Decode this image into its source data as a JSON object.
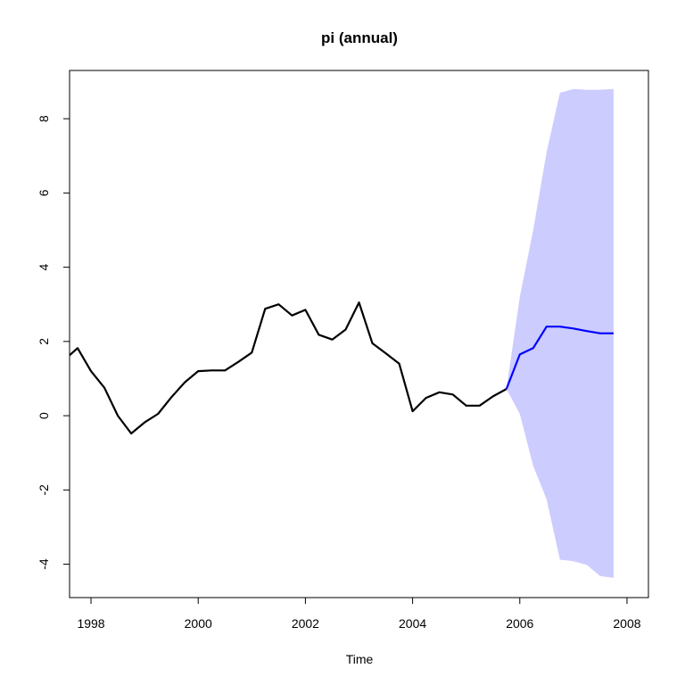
{
  "chart_data": {
    "type": "line",
    "title": "pi (annual)",
    "xlabel": "Time",
    "ylabel": "",
    "xlim": [
      1997.6,
      2008.4
    ],
    "ylim": [
      -4.9,
      9.3
    ],
    "x_ticks": [
      1998,
      2000,
      2002,
      2004,
      2006,
      2008
    ],
    "y_ticks": [
      -4,
      -2,
      0,
      2,
      4,
      6,
      8
    ],
    "grid": false,
    "legend": "none",
    "colors": {
      "history": "#000000",
      "forecast": "#0000ff",
      "interval": "#ccccff"
    },
    "series": [
      {
        "role": "history",
        "x": [
          1997.5,
          1997.75,
          1998.0,
          1998.25,
          1998.5,
          1998.75,
          1999.0,
          1999.25,
          1999.5,
          1999.75,
          2000.0,
          2000.25,
          2000.5,
          2000.75,
          2001.0,
          2001.25,
          2001.5,
          2001.75,
          2002.0,
          2002.25,
          2002.5,
          2002.75,
          2003.0,
          2003.25,
          2003.5,
          2003.75,
          2004.0,
          2004.25,
          2004.5,
          2004.75,
          2005.0,
          2005.25,
          2005.5,
          2005.75
        ],
        "values": [
          1.5,
          1.82,
          1.2,
          0.75,
          0.0,
          -0.48,
          -0.18,
          0.05,
          0.5,
          0.9,
          1.2,
          1.22,
          1.22,
          1.45,
          1.7,
          2.88,
          3.0,
          2.7,
          2.85,
          2.18,
          2.05,
          2.32,
          3.05,
          1.95,
          1.68,
          1.4,
          0.12,
          0.48,
          0.63,
          0.57,
          0.27,
          0.27,
          0.52,
          0.72
        ]
      },
      {
        "role": "forecast",
        "x": [
          2005.75,
          2006.0,
          2006.25,
          2006.5,
          2006.75,
          2007.0,
          2007.25,
          2007.5,
          2007.75
        ],
        "values": [
          0.72,
          1.65,
          1.82,
          2.4,
          2.4,
          2.35,
          2.28,
          2.22,
          2.22
        ]
      }
    ],
    "interval": {
      "x": [
        2005.75,
        2006.0,
        2006.25,
        2006.5,
        2006.75,
        2007.0,
        2007.25,
        2007.5,
        2007.75
      ],
      "upper": [
        0.72,
        3.2,
        5.0,
        7.1,
        8.7,
        8.8,
        8.78,
        8.78,
        8.8
      ],
      "lower": [
        0.72,
        0.05,
        -1.35,
        -2.25,
        -3.88,
        -3.92,
        -4.02,
        -4.32,
        -4.37
      ]
    }
  }
}
